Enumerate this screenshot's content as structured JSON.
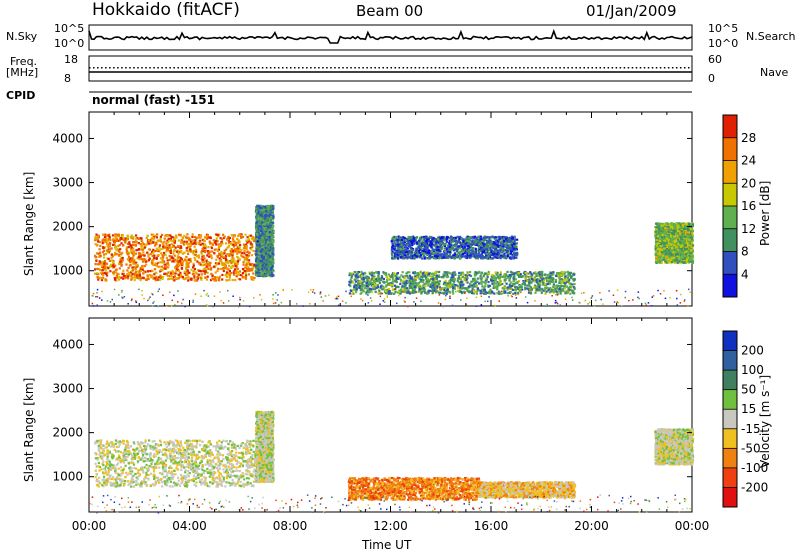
{
  "header": {
    "station": "Hokkaido (fitACF)",
    "beam": "Beam 00",
    "date": "01/Jan/2009"
  },
  "top_panels": {
    "nsky_label": "N.Sky",
    "nsky_ticks": [
      "10^5",
      "10^0"
    ],
    "nsearch_label": "N.Search",
    "nsearch_ticks": [
      "10^5",
      "10^0"
    ],
    "freq_label": "Freq.",
    "freq_unit": "[MHz]",
    "freq_ticks": [
      "18",
      "8"
    ],
    "nave_label": "Nave",
    "nave_ticks": [
      "60",
      "0"
    ],
    "cpid_label": "CPID",
    "cpid_value": "normal (fast) -151"
  },
  "chart_data": [
    {
      "type": "heatmap",
      "parameter": "power",
      "ylabel": "Slant Range [km]",
      "ylim": [
        200,
        4600
      ],
      "yticks": [
        "1000",
        "2000",
        "3000",
        "4000"
      ],
      "xlim_hours": [
        0,
        24
      ],
      "colorbar_label": "Power [dB]",
      "colorbar_ticks": [
        "4",
        "8",
        "12",
        "16",
        "20",
        "24",
        "28"
      ],
      "colorbar_range": [
        0,
        32
      ],
      "colors": [
        "#1010e0",
        "#3050c0",
        "#409060",
        "#60b050",
        "#c8c800",
        "#f0a000",
        "#f07000",
        "#e02000"
      ],
      "regions": [
        {
          "t0": 0.2,
          "t1": 6.6,
          "r0": 800,
          "r1": 1850,
          "level": 26
        },
        {
          "t0": 6.6,
          "t1": 7.3,
          "r0": 900,
          "r1": 2500,
          "level": 9
        },
        {
          "t0": 10.3,
          "t1": 19.3,
          "r0": 500,
          "r1": 1000,
          "level": 11
        },
        {
          "t0": 12.0,
          "t1": 17.0,
          "r0": 1300,
          "r1": 1800,
          "level": 5
        },
        {
          "t0": 22.5,
          "t1": 24.0,
          "r0": 1200,
          "r1": 2100,
          "level": 14
        }
      ]
    },
    {
      "type": "heatmap",
      "parameter": "velocity",
      "ylabel": "Slant Range [km]",
      "ylim": [
        200,
        4600
      ],
      "yticks": [
        "1000",
        "2000",
        "3000",
        "4000"
      ],
      "xlim_hours": [
        0,
        24
      ],
      "colorbar_label": "Velocity [m s⁻¹]",
      "colorbar_ticks": [
        "200",
        "100",
        "50",
        "15",
        "-15",
        "-50",
        "-100",
        "-200"
      ],
      "colors": [
        "#1030c0",
        "#3060a0",
        "#408060",
        "#70c040",
        "#c8c8c0",
        "#f0c020",
        "#f08010",
        "#f04010",
        "#e01010"
      ],
      "regions": [
        {
          "t0": 0.2,
          "t1": 6.6,
          "r0": 800,
          "r1": 1850,
          "level": 4
        },
        {
          "t0": 6.6,
          "t1": 7.3,
          "r0": 900,
          "r1": 2500,
          "level": 4
        },
        {
          "t0": 10.3,
          "t1": 15.5,
          "r0": 500,
          "r1": 1000,
          "level": 6
        },
        {
          "t0": 15.5,
          "t1": 19.3,
          "r0": 550,
          "r1": 900,
          "level": 5
        },
        {
          "t0": 22.5,
          "t1": 24.0,
          "r0": 1300,
          "r1": 2100,
          "level": 4
        }
      ]
    }
  ],
  "xaxis": {
    "ticks": [
      "00:00",
      "04:00",
      "08:00",
      "12:00",
      "16:00",
      "20:00",
      "00:00"
    ],
    "label": "Time UT"
  }
}
